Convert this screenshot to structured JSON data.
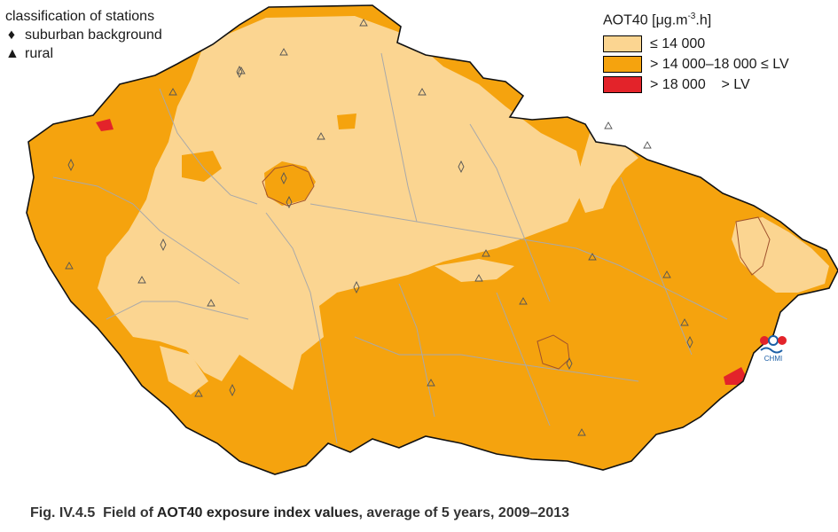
{
  "stations_legend": {
    "title": "classification of stations",
    "items": [
      {
        "symbol": "♦",
        "label": "suburban background"
      },
      {
        "symbol": "▲",
        "label": "rural"
      }
    ]
  },
  "value_legend": {
    "title": "AOT40 [μg.m",
    "title_sup": "-3",
    "title_end": ".h]",
    "items": [
      {
        "label": "≤ 14 000",
        "color": "#fbd591"
      },
      {
        "label": "> 14 000–18 000 ≤ LV",
        "color": "#f5a30e"
      },
      {
        "label": "> 18 000    > LV",
        "color": "#e3232a"
      }
    ]
  },
  "logo": {
    "label": "CHMI"
  },
  "caption": {
    "prefix": "Fig. IV.4.5  Field of ",
    "bold": "AOT40 exposure index values",
    "suffix": ", average of 5 years, 2009–2013"
  },
  "colors": {
    "light": "#fbd591",
    "orange": "#f5a30e",
    "red": "#e3232a",
    "border": "#a9a9a9",
    "outline": "#111111"
  }
}
